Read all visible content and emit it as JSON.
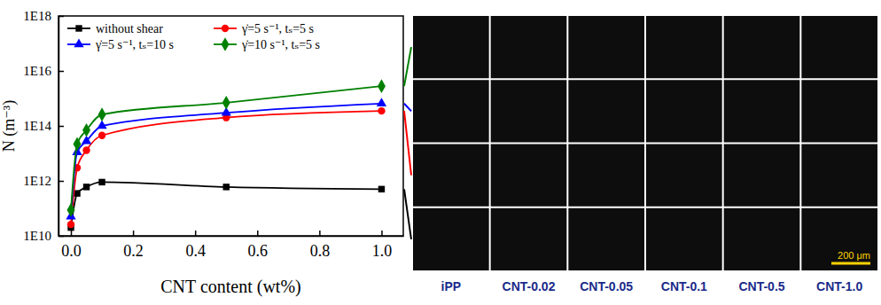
{
  "chart_data": {
    "type": "line",
    "x_label": "CNT content (wt%)",
    "y_label": "N (m⁻³)",
    "log": "y",
    "legend": "upper left",
    "x": [
      0,
      0.02,
      0.05,
      0.1,
      0.5,
      1.0
    ],
    "xlim": [
      -0.04,
      1.07
    ],
    "xticks": [
      {
        "value": 0,
        "label": "0.0"
      },
      {
        "value": 0.2,
        "label": "0.2"
      },
      {
        "value": 0.4,
        "label": "0.4"
      },
      {
        "value": 0.6,
        "label": "0.6"
      },
      {
        "value": 0.8,
        "label": "0.8"
      },
      {
        "value": 1.0,
        "label": "1.0"
      }
    ],
    "ylim": [
      10000000000.0,
      1e+18
    ],
    "yticks": [
      {
        "value": 10000000000.0,
        "label": "1E10"
      },
      {
        "value": 1000000000000.0,
        "label": "1E12"
      },
      {
        "value": 100000000000000.0,
        "label": "1E14"
      },
      {
        "value": 1e+16,
        "label": "1E16"
      },
      {
        "value": 1e+18,
        "label": "1E18"
      }
    ],
    "series": [
      {
        "name": "without shear",
        "color": "#000000",
        "marker": "square",
        "values": [
          20000000000.0,
          350000000000.0,
          600000000000.0,
          900000000000.0,
          600000000000.0,
          500000000000.0
        ]
      },
      {
        "name": "γ̇=5 s⁻¹,  tₛ=5 s",
        "color": "#ff0000",
        "marker": "circle",
        "values": [
          26000000000.0,
          3000000000000.0,
          13000000000000.0,
          45000000000000.0,
          200000000000000.0,
          350000000000000.0
        ]
      },
      {
        "name": "γ̇=5 s⁻¹,  tₛ=10 s",
        "color": "#0000ff",
        "marker": "triangle",
        "values": [
          50000000000.0,
          11000000000000.0,
          28000000000000.0,
          100000000000000.0,
          300000000000000.0,
          650000000000000.0
        ]
      },
      {
        "name": "γ̇=10 s⁻¹,  tₛ=5 s",
        "color": "#008000",
        "marker": "diamond",
        "values": [
          87000000000.0,
          22000000000000.0,
          70000000000000.0,
          260000000000000.0,
          700000000000000.0,
          2800000000000000.0
        ]
      }
    ]
  },
  "micrographs": {
    "columns": [
      "iPP",
      "CNT-0.02",
      "CNT-0.05",
      "CNT-0.1",
      "CNT-0.5",
      "CNT-1.0"
    ],
    "scale_bar": "200 μm"
  }
}
